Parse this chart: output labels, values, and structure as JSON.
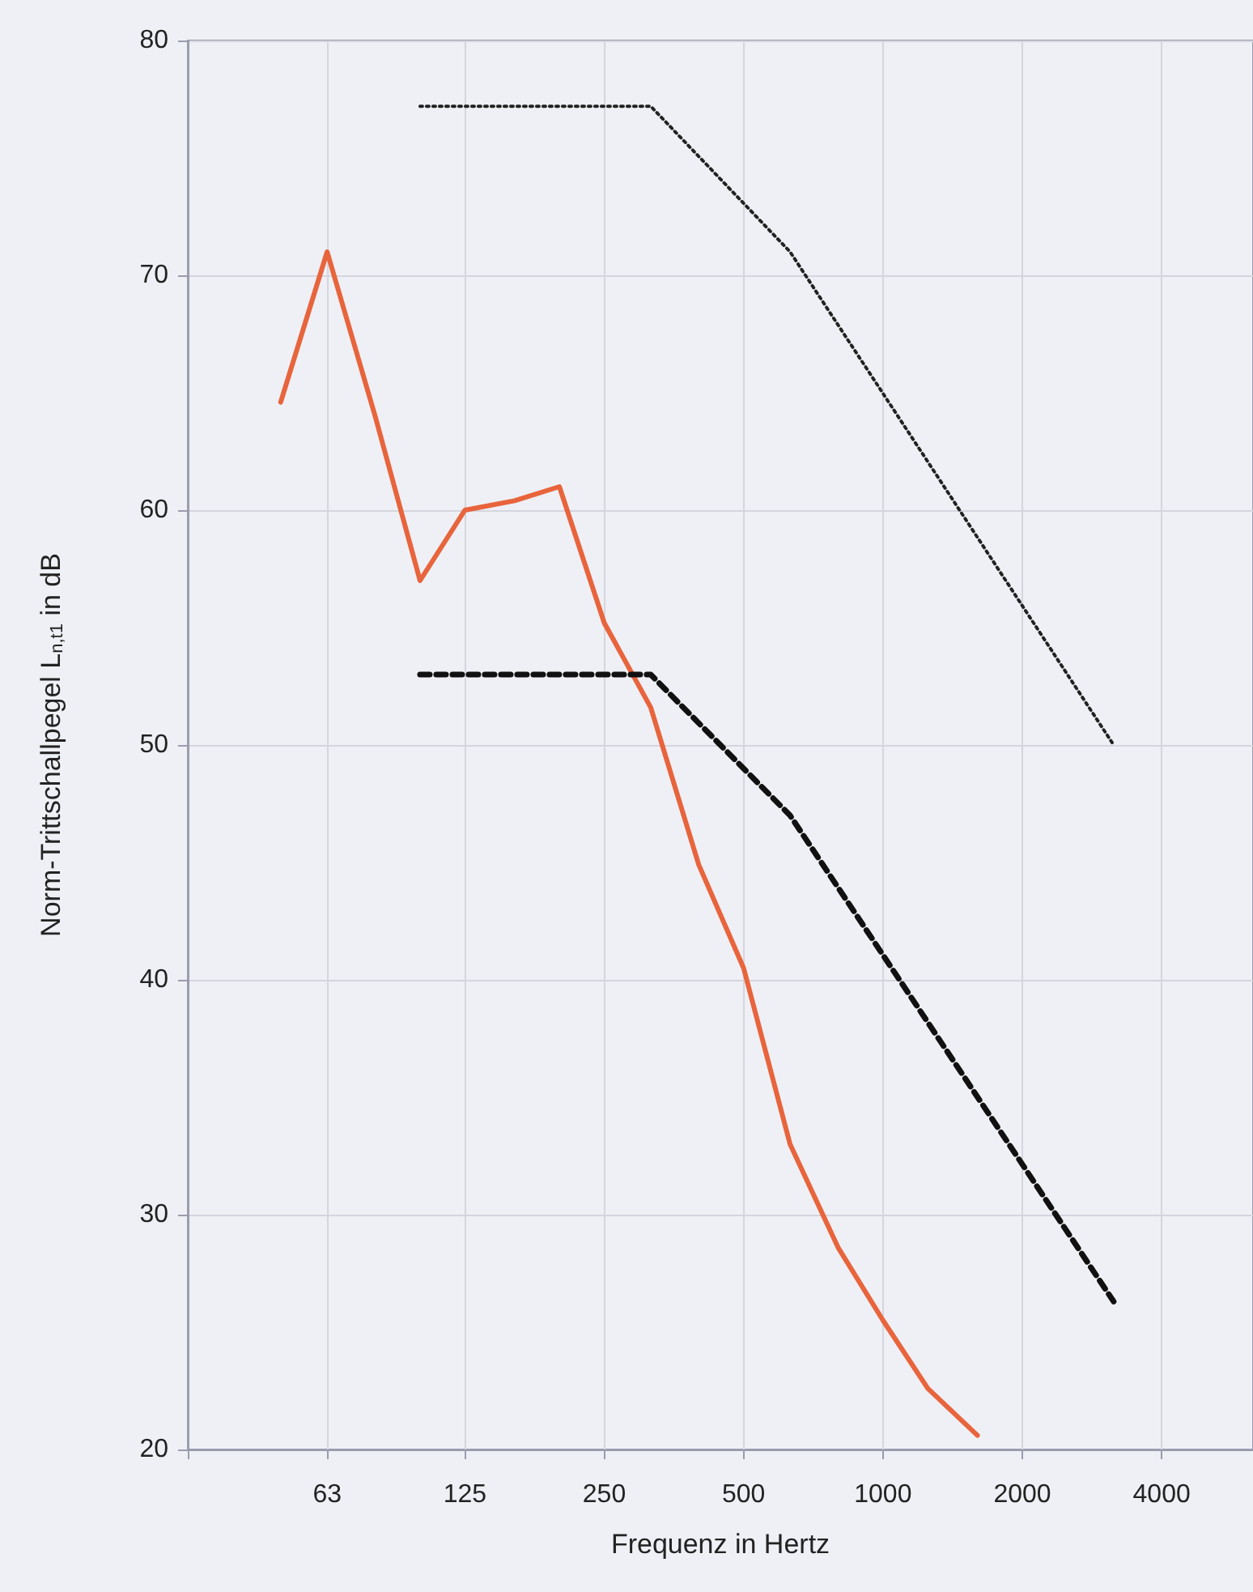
{
  "chart_data": {
    "type": "line",
    "xlabel": "Frequenz in Hertz",
    "ylabel": "Norm-Trittschallpegel L$_{n,t1}$ in dB",
    "log": "x",
    "grid": true,
    "marker": "none",
    "xlim": [
      31.5,
      6300
    ],
    "xticks": [
      {
        "value": 31.5,
        "label": null
      },
      63,
      125,
      250,
      500,
      1000,
      2000,
      4000
    ],
    "ylim": [
      20,
      80
    ],
    "yticks": [
      20,
      30,
      40,
      50,
      60,
      70,
      80
    ],
    "series": [
      {
        "color": "#e8643c",
        "line_style": "solid",
        "x": [
          50,
          63,
          80,
          100,
          125,
          160,
          200,
          250,
          315,
          400,
          500,
          630,
          800,
          1000,
          1250,
          1600
        ],
        "values": [
          64.6,
          71,
          64,
          57,
          60,
          60.4,
          61,
          55.2,
          51.6,
          44.9,
          40.5,
          33,
          28.6,
          25.5,
          22.6,
          20.6
        ]
      },
      {
        "color": "#222222",
        "line_style": "dotted",
        "x": [
          100,
          315,
          630,
          3150
        ],
        "values": [
          77.2,
          77.2,
          71,
          50
        ]
      },
      {
        "color": "#111111",
        "line_style": "dashed",
        "x": [
          100,
          315,
          630,
          3150
        ],
        "values": [
          53,
          53,
          47,
          26.3
        ]
      }
    ]
  }
}
